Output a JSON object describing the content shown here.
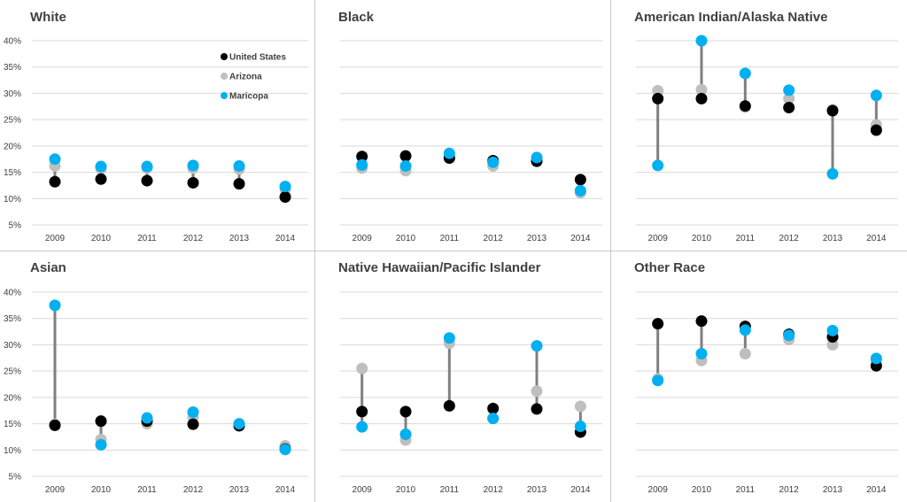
{
  "chart_data": [
    {
      "type": "scatter",
      "title": "White",
      "categories": [
        "2009",
        "2010",
        "2011",
        "2012",
        "2013",
        "2014"
      ],
      "y_tick_labels": [
        "5%",
        "10%",
        "15%",
        "20%",
        "25%",
        "30%",
        "35%",
        "40%"
      ],
      "ylim": [
        5,
        40
      ],
      "legend": [
        {
          "name": "United States",
          "color": "#000000"
        },
        {
          "name": "Arizona",
          "color": "#bfbfbf"
        },
        {
          "name": "Maricopa",
          "color": "#00b0f0"
        }
      ],
      "legend_position": "top-right",
      "series": [
        {
          "name": "United States",
          "color": "#000000",
          "values": [
            13.2,
            13.7,
            13.4,
            13.0,
            12.8,
            10.3
          ]
        },
        {
          "name": "Arizona",
          "color": "#bfbfbf",
          "values": [
            16.2,
            15.7,
            15.8,
            15.8,
            15.6,
            11.8
          ]
        },
        {
          "name": "Maricopa",
          "color": "#00b0f0",
          "values": [
            17.5,
            16.1,
            16.1,
            16.3,
            16.2,
            12.3
          ]
        }
      ]
    },
    {
      "type": "scatter",
      "title": "Black",
      "categories": [
        "2009",
        "2010",
        "2011",
        "2012",
        "2013",
        "2014"
      ],
      "y_tick_labels": [],
      "ylim": [
        5,
        40
      ],
      "series": [
        {
          "name": "United States",
          "color": "#000000",
          "values": [
            18.0,
            18.1,
            17.7,
            17.2,
            17.1,
            13.6
          ]
        },
        {
          "name": "Arizona",
          "color": "#bfbfbf",
          "values": [
            15.8,
            15.3,
            18.0,
            16.2,
            17.3,
            11.1
          ]
        },
        {
          "name": "Maricopa",
          "color": "#00b0f0",
          "values": [
            16.4,
            16.2,
            18.6,
            16.9,
            17.8,
            11.5
          ]
        }
      ]
    },
    {
      "type": "scatter",
      "title": "American Indian/Alaska Native",
      "categories": [
        "2009",
        "2010",
        "2011",
        "2012",
        "2013",
        "2014"
      ],
      "y_tick_labels": [],
      "ylim": [
        5,
        40
      ],
      "series": [
        {
          "name": "United States",
          "color": "#000000",
          "values": [
            29.0,
            29.0,
            27.6,
            27.3,
            26.7,
            23.0
          ]
        },
        {
          "name": "Arizona",
          "color": "#bfbfbf",
          "values": [
            30.5,
            30.7,
            27.4,
            29.0,
            26.9,
            24.0
          ]
        },
        {
          "name": "Maricopa",
          "color": "#00b0f0",
          "values": [
            16.3,
            40.0,
            33.8,
            30.6,
            14.7,
            29.6
          ]
        }
      ]
    },
    {
      "type": "scatter",
      "title": "Asian",
      "categories": [
        "2009",
        "2010",
        "2011",
        "2012",
        "2013",
        "2014"
      ],
      "y_tick_labels": [
        "5%",
        "10%",
        "15%",
        "20%",
        "25%",
        "30%",
        "35%",
        "40%"
      ],
      "ylim": [
        5,
        40
      ],
      "series": [
        {
          "name": "United States",
          "color": "#000000",
          "values": [
            14.7,
            15.5,
            15.5,
            14.9,
            14.6,
            10.2
          ]
        },
        {
          "name": "Arizona",
          "color": "#bfbfbf",
          "values": [
            14.9,
            12.0,
            15.0,
            16.2,
            14.9,
            10.8
          ]
        },
        {
          "name": "Maricopa",
          "color": "#00b0f0",
          "values": [
            37.5,
            11.0,
            16.1,
            17.2,
            15.0,
            10.1
          ]
        }
      ]
    },
    {
      "type": "scatter",
      "title": "Native Hawaiian/Pacific Islander",
      "categories": [
        "2009",
        "2010",
        "2011",
        "2012",
        "2013",
        "2014"
      ],
      "y_tick_labels": [],
      "ylim": [
        5,
        40
      ],
      "series": [
        {
          "name": "United States",
          "color": "#000000",
          "values": [
            17.3,
            17.3,
            18.4,
            17.9,
            17.8,
            13.4
          ]
        },
        {
          "name": "Arizona",
          "color": "#bfbfbf",
          "values": [
            25.5,
            11.9,
            30.3,
            16.0,
            21.2,
            18.3
          ]
        },
        {
          "name": "Maricopa",
          "color": "#00b0f0",
          "values": [
            14.4,
            13.0,
            31.3,
            16.0,
            29.8,
            14.5
          ]
        }
      ]
    },
    {
      "type": "scatter",
      "title": "Other Race",
      "categories": [
        "2009",
        "2010",
        "2011",
        "2012",
        "2013",
        "2014"
      ],
      "y_tick_labels": [],
      "ylim": [
        5,
        40
      ],
      "series": [
        {
          "name": "United States",
          "color": "#000000",
          "values": [
            34.0,
            34.5,
            33.5,
            32.0,
            31.5,
            26.0
          ]
        },
        {
          "name": "Arizona",
          "color": "#bfbfbf",
          "values": [
            23.5,
            27.0,
            28.3,
            31.0,
            30.0,
            27.0
          ]
        },
        {
          "name": "Maricopa",
          "color": "#00b0f0",
          "values": [
            23.2,
            28.3,
            32.8,
            31.8,
            32.7,
            27.4
          ]
        }
      ]
    }
  ]
}
